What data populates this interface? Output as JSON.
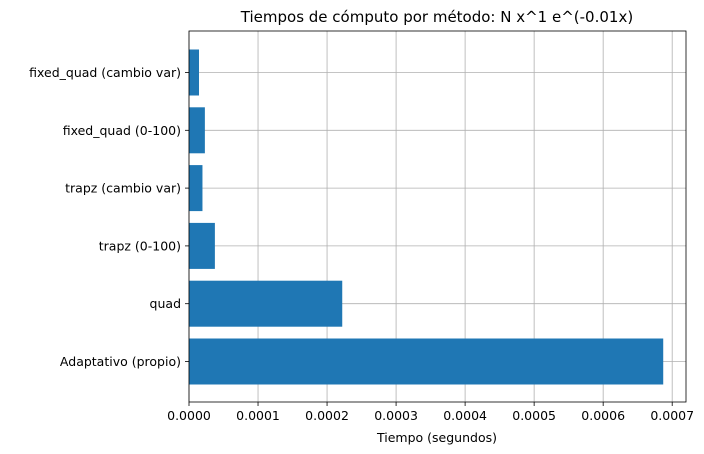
{
  "chart_data": {
    "type": "bar",
    "orientation": "horizontal",
    "title": "Tiempos de cómputo por método: N x^1 e^(-0.01x)",
    "xlabel": "Tiempo (segundos)",
    "ylabel": "",
    "categories": [
      "Adaptativo (propio)",
      "quad",
      "trapz (0-100)",
      "trapz (cambio var)",
      "fixed_quad (0-100)",
      "fixed_quad (cambio var)"
    ],
    "values": [
      0.000687,
      0.000222,
      3.75e-05,
      1.95e-05,
      2.3e-05,
      1.45e-05
    ],
    "xlim": [
      0,
      0.00072
    ],
    "xticks": [
      0,
      0.0001,
      0.0002,
      0.0003,
      0.0004,
      0.0005,
      0.0006,
      0.0007
    ],
    "xtick_labels": [
      "0.0000",
      "0.0001",
      "0.0002",
      "0.0003",
      "0.0004",
      "0.0005",
      "0.0006",
      "0.0007"
    ],
    "grid": true,
    "bar_color": "#1f77b4"
  }
}
